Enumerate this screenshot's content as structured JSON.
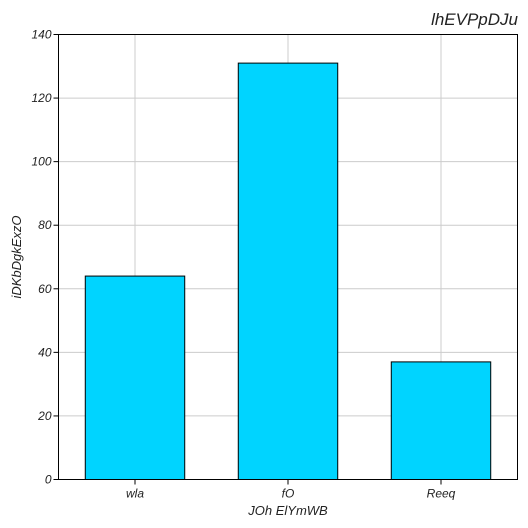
{
  "chart_data": {
    "type": "bar",
    "title": "lhEVPpDJu",
    "xlabel": "JOh ElYmWB",
    "ylabel": "iDKbDgkExzO",
    "categories": [
      "wla",
      "fO",
      "Reeq"
    ],
    "values": [
      64,
      131,
      37
    ],
    "ylim": [
      0,
      140
    ],
    "yticks": [
      0,
      20,
      40,
      60,
      80,
      100,
      120,
      140
    ],
    "grid": true,
    "bar_color": "#00d4ff"
  }
}
